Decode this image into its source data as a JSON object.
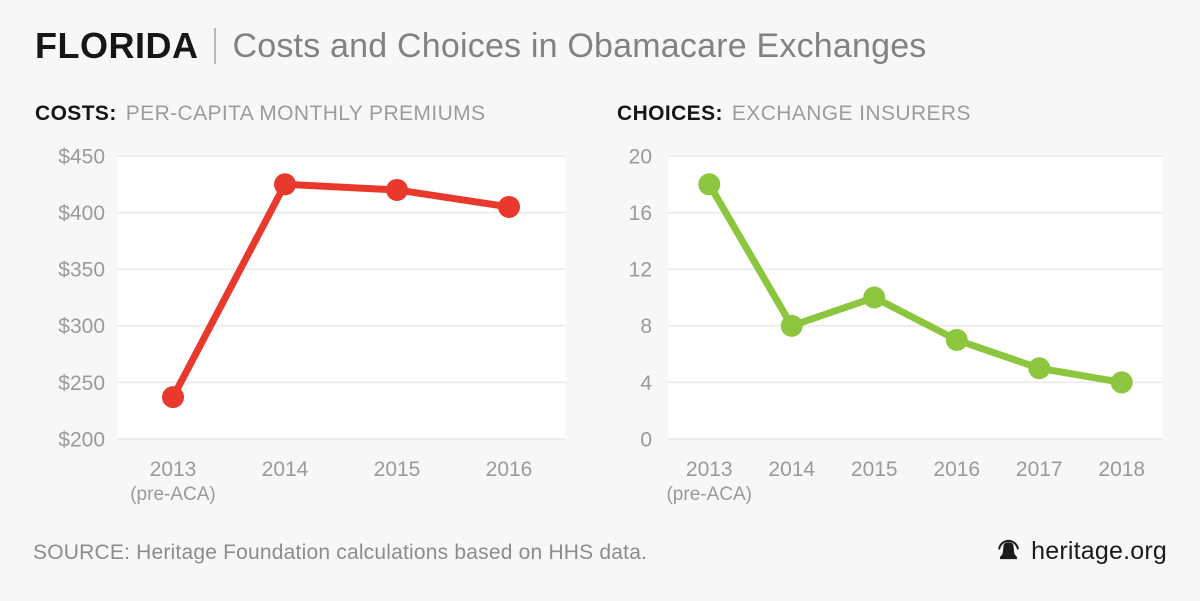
{
  "header": {
    "region": "FLORIDA",
    "title": "Costs and Choices in Obamacare Exchanges"
  },
  "charts": [
    {
      "label": "COSTS:",
      "sublabel": "PER-CAPITA MONTHLY PREMIUMS"
    },
    {
      "label": "CHOICES:",
      "sublabel": "EXCHANGE INSURERS"
    }
  ],
  "chart_data": [
    {
      "type": "line",
      "title": "COSTS: PER-CAPITA MONTHLY PREMIUMS",
      "categories": [
        "2013",
        "2014",
        "2015",
        "2016"
      ],
      "category_notes": [
        "(pre-ACA)",
        "",
        "",
        ""
      ],
      "values": [
        237,
        425,
        420,
        405
      ],
      "y_prefix": "$",
      "ylim": [
        200,
        450
      ],
      "ytick_step": 50,
      "line_color": "#e8392c",
      "grid": true,
      "legend": "none"
    },
    {
      "type": "line",
      "title": "CHOICES: EXCHANGE INSURERS",
      "categories": [
        "2013",
        "2014",
        "2015",
        "2016",
        "2017",
        "2018"
      ],
      "category_notes": [
        "(pre-ACA)",
        "",
        "",
        "",
        "",
        ""
      ],
      "values": [
        18,
        8,
        10,
        7,
        5,
        4
      ],
      "y_prefix": "",
      "ylim": [
        0,
        20
      ],
      "ytick_step": 4,
      "line_color": "#8cc63f",
      "grid": true,
      "legend": "none"
    }
  ],
  "footer": {
    "source": "SOURCE: Heritage Foundation calculations based on HHS data.",
    "brand": "heritage.org"
  },
  "colors": {
    "background": "#f7f7f7",
    "panel": "#ffffff",
    "gridline": "#e9e9e9",
    "costs_line": "#e8392c",
    "choices_line": "#8cc63f",
    "axis_text": "#9a9a9a"
  }
}
